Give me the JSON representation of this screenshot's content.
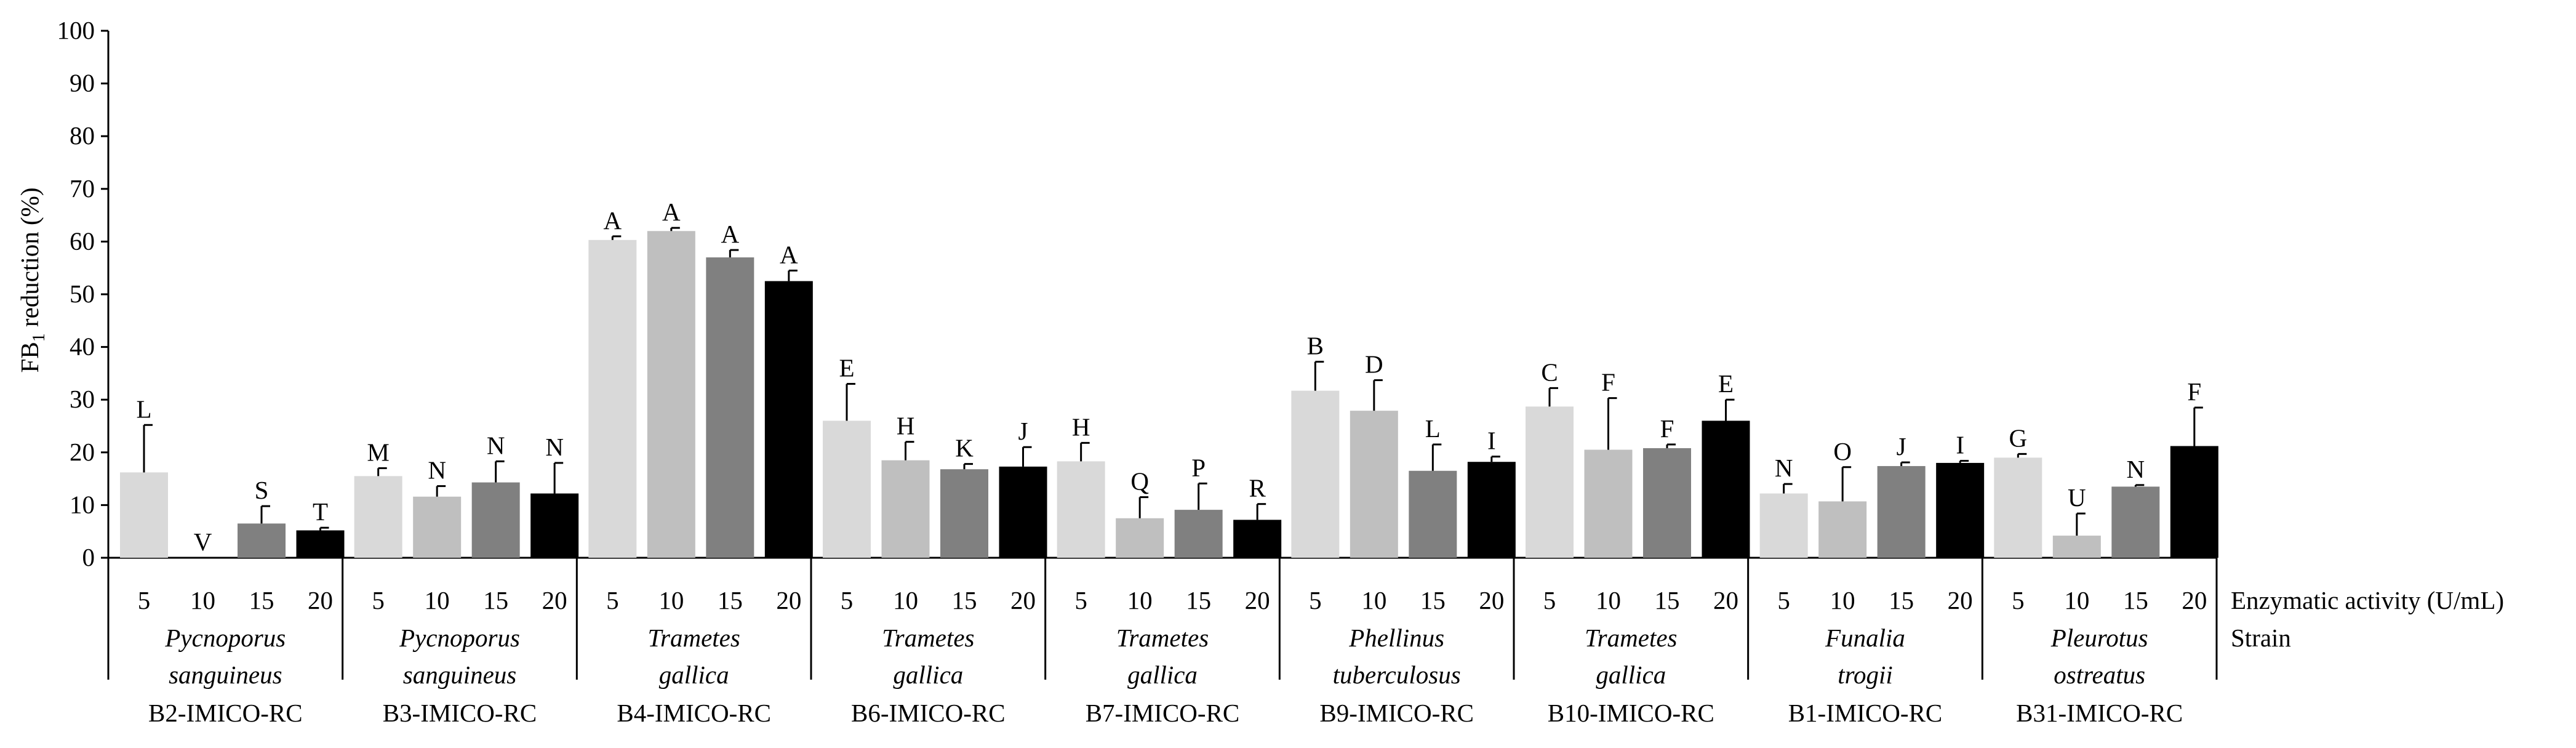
{
  "chart_data": {
    "type": "bar",
    "title": "",
    "ylabel": "FB1 reduction (%)",
    "ylabel_main": "FB",
    "ylabel_sub": "1",
    "ylabel_rest": " reduction (%)",
    "ylim": [
      0,
      100
    ],
    "yticks": [
      0,
      10,
      20,
      30,
      40,
      50,
      60,
      70,
      80,
      90,
      100
    ],
    "enzymatic_label": "Enzymatic activity (U/mL)",
    "strain_label": "Strain",
    "levels": [
      "5",
      "10",
      "15",
      "20"
    ],
    "level_colors": [
      "#d9d9d9",
      "#bfbfbf",
      "#808080",
      "#000000"
    ],
    "groups": [
      {
        "genus": "Pycnoporus",
        "species": "sanguineus",
        "code": "B2-IMICO-RC",
        "values": [
          16.2,
          0,
          6.5,
          5.2
        ],
        "errors": [
          9.0,
          0,
          3.3,
          0.5
        ],
        "letters": [
          "L",
          "V",
          "S",
          "T"
        ]
      },
      {
        "genus": "Pycnoporus",
        "species": "sanguineus",
        "code": "B3-IMICO-RC",
        "values": [
          15.5,
          11.6,
          14.3,
          12.2
        ],
        "errors": [
          1.5,
          2.0,
          4.0,
          5.8
        ],
        "letters": [
          "M",
          "N",
          "N",
          "N"
        ]
      },
      {
        "genus": "Trametes",
        "species": "gallica",
        "code": "B4-IMICO-RC",
        "values": [
          60.3,
          62.0,
          57.0,
          52.5
        ],
        "errors": [
          0.7,
          0.6,
          1.4,
          2.0
        ],
        "letters": [
          "A",
          "A",
          "A",
          "A"
        ]
      },
      {
        "genus": "Trametes",
        "species": "gallica",
        "code": "B6-IMICO-RC",
        "values": [
          26.0,
          18.5,
          16.8,
          17.3
        ],
        "errors": [
          7.0,
          3.5,
          1.0,
          3.7
        ],
        "letters": [
          "E",
          "H",
          "K",
          "J"
        ]
      },
      {
        "genus": "Trametes",
        "species": "gallica",
        "code": "B7-IMICO-RC",
        "values": [
          18.3,
          7.5,
          9.1,
          7.2
        ],
        "errors": [
          3.5,
          4.0,
          5.0,
          3.0
        ],
        "letters": [
          "H",
          "Q",
          "P",
          "R"
        ]
      },
      {
        "genus": "Phellinus",
        "species": "tuberculosus",
        "code": "B9-IMICO-RC",
        "values": [
          31.7,
          27.9,
          16.5,
          18.2
        ],
        "errors": [
          5.5,
          5.8,
          5.0,
          1.0
        ],
        "letters": [
          "B",
          "D",
          "L",
          "I"
        ]
      },
      {
        "genus": "Trametes",
        "species": "gallica",
        "code": "B10-IMICO-RC",
        "values": [
          28.7,
          20.5,
          20.8,
          26.0
        ],
        "errors": [
          3.5,
          9.8,
          0.7,
          4.0
        ],
        "letters": [
          "C",
          "F",
          "F",
          "E"
        ]
      },
      {
        "genus": "Funalia",
        "species": "trogii",
        "code": "B1-IMICO-RC",
        "values": [
          12.2,
          10.7,
          17.4,
          18.0
        ],
        "errors": [
          1.8,
          6.5,
          0.7,
          0.4
        ],
        "letters": [
          "N",
          "O",
          "J",
          "I"
        ]
      },
      {
        "genus": "Pleurotus",
        "species": "ostreatus",
        "code": "B31-IMICO-RC",
        "values": [
          19.0,
          4.2,
          13.5,
          21.2
        ],
        "errors": [
          0.7,
          4.2,
          0.3,
          7.3
        ],
        "letters": [
          "G",
          "U",
          "N",
          "F"
        ]
      }
    ]
  }
}
